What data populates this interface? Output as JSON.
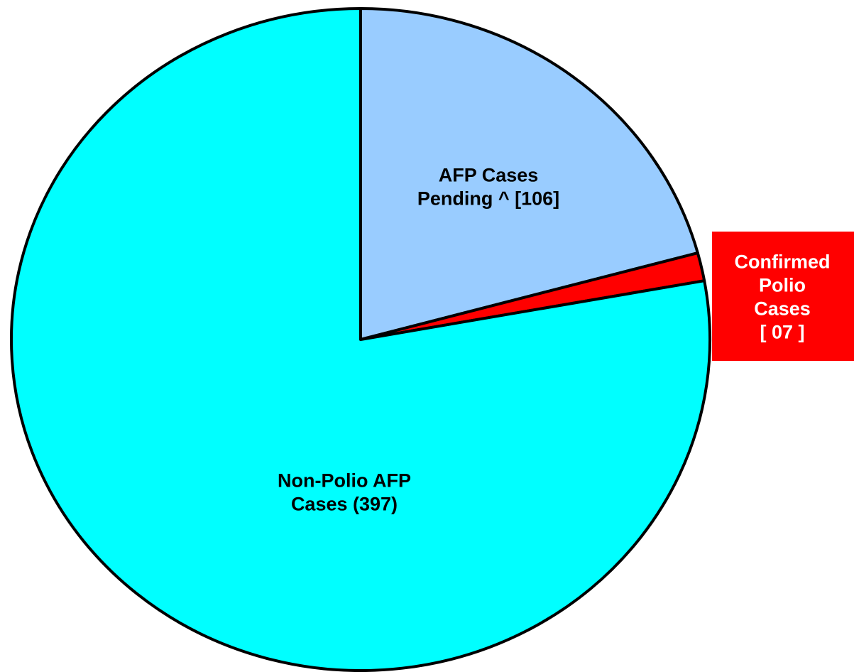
{
  "chart_data": {
    "type": "pie",
    "categories": [
      [
        "AFP Cases",
        "Pending ^ [106]"
      ],
      [
        "Confirmed",
        "Polio",
        "Cases",
        "[ 07 ]"
      ],
      [
        "Non-Polio AFP",
        "Cases (397)"
      ]
    ],
    "values": [
      106,
      7,
      397
    ],
    "colors": [
      "#99ccff",
      "#ff0000",
      "#00ffff"
    ]
  }
}
